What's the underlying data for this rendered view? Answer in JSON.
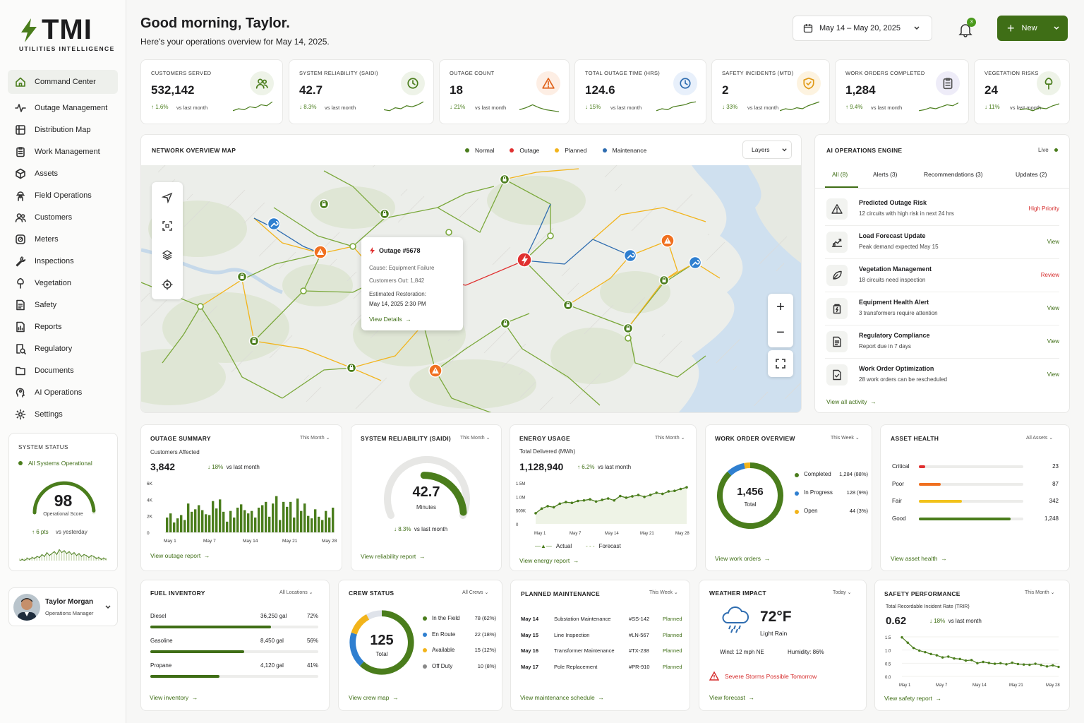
{
  "brand": {
    "name": "TMI",
    "tagline": "UTILITIES INTELLIGENCE"
  },
  "nav": [
    {
      "label": "Command Center",
      "icon": "home-icon"
    },
    {
      "label": "Outage Management",
      "icon": "pulse-icon"
    },
    {
      "label": "Distribution Map",
      "icon": "map-icon"
    },
    {
      "label": "Work Management",
      "icon": "clipboard-icon"
    },
    {
      "label": "Assets",
      "icon": "asset-icon"
    },
    {
      "label": "Field Operations",
      "icon": "worker-icon"
    },
    {
      "label": "Customers",
      "icon": "users-icon"
    },
    {
      "label": "Meters",
      "icon": "meter-icon"
    },
    {
      "label": "Inspections",
      "icon": "wrench-icon"
    },
    {
      "label": "Vegetation",
      "icon": "tree-icon"
    },
    {
      "label": "Safety",
      "icon": "document-icon"
    },
    {
      "label": "Reports",
      "icon": "report-icon"
    },
    {
      "label": "Regulatory",
      "icon": "regulatory-icon"
    },
    {
      "label": "Documents",
      "icon": "folder-icon"
    },
    {
      "label": "AI Operations",
      "icon": "ai-icon"
    },
    {
      "label": "Settings",
      "icon": "gear-icon"
    }
  ],
  "system_status": {
    "title": "SYSTEM STATUS",
    "status": "All Systems Operational",
    "score": "98",
    "score_label": "Operational Score",
    "score_fraction": 0.98,
    "delta": "↑ 6 pts",
    "vs": "vs yesterday"
  },
  "user": {
    "name": "Taylor Morgan",
    "role": "Operations Manager"
  },
  "header": {
    "greeting": "Good morning, Taylor.",
    "subtitle": "Here's your operations overview for May 14, 2025.",
    "date_range": "May 14 – May 20, 2025",
    "notifications": "3",
    "new_label": "New"
  },
  "kpis": [
    {
      "title": "CUSTOMERS SERVED",
      "value": "532,142",
      "delta": "↑ 1.6%",
      "vs": "vs last month",
      "icon": "users-icon",
      "tone": "green"
    },
    {
      "title": "SYSTEM RELIABILITY (SAIDI)",
      "value": "42.7",
      "delta": "↓ 8.3%",
      "vs": "vs last month",
      "icon": "clock-icon",
      "tone": "green"
    },
    {
      "title": "OUTAGE COUNT",
      "value": "18",
      "delta": "↓ 21%",
      "vs": "vs last month",
      "icon": "warning-icon",
      "tone": "orange"
    },
    {
      "title": "TOTAL OUTAGE TIME (HRS)",
      "value": "124.6",
      "delta": "↓ 15%",
      "vs": "vs last month",
      "icon": "clock-icon",
      "tone": "blue"
    },
    {
      "title": "SAFETY INCIDENTS (MTD)",
      "value": "2",
      "delta": "↓ 33%",
      "vs": "vs last month",
      "icon": "shield-icon",
      "tone": "amber"
    },
    {
      "title": "WORK ORDERS COMPLETED",
      "value": "1,284",
      "delta": "↑ 9.4%",
      "vs": "vs last month",
      "icon": "clipboard-icon",
      "tone": "purple"
    },
    {
      "title": "VEGETATION RISKS",
      "value": "24",
      "delta": "↓ 11%",
      "vs": "vs last month",
      "icon": "tree-icon",
      "tone": "green"
    }
  ],
  "map": {
    "title": "NETWORK OVERVIEW MAP",
    "legend": [
      "Normal",
      "Outage",
      "Planned",
      "Maintenance"
    ],
    "layers": "Layers",
    "popup": {
      "title": "Outage #5678",
      "cause": "Cause: Equipment Failure",
      "customers": "Customers Out: 1,842",
      "restoration_label": "Estimated Restoration:",
      "restoration": "May 14, 2025 2:30 PM",
      "link": "View Details"
    }
  },
  "ai": {
    "title": "AI OPERATIONS ENGINE",
    "live": "Live",
    "tabs": [
      "All (8)",
      "Alerts (3)",
      "Recommendations (3)",
      "Updates (2)"
    ],
    "items": [
      {
        "title": "Predicted Outage Risk",
        "desc": "12 circuits with high risk in next 24 hrs",
        "action": "High Priority",
        "icon": "warning-icon"
      },
      {
        "title": "Load Forecast Update",
        "desc": "Peak demand expected May 15",
        "action": "View",
        "icon": "chart-icon"
      },
      {
        "title": "Vegetation Management",
        "desc": "18 circuits need inspection",
        "action": "Review",
        "icon": "leaf-icon"
      },
      {
        "title": "Equipment Health Alert",
        "desc": "3 transformers require attention",
        "action": "View",
        "icon": "transformer-icon"
      },
      {
        "title": "Regulatory Compliance",
        "desc": "Report due in 7 days",
        "action": "View",
        "icon": "document-icon"
      },
      {
        "title": "Work Order Optimization",
        "desc": "28 work orders can be rescheduled",
        "action": "View",
        "icon": "file-check-icon"
      }
    ],
    "link": "View all activity"
  },
  "outage_summary": {
    "title": "OUTAGE SUMMARY",
    "filter": "This Month",
    "label": "Customers Affected",
    "value": "3,842",
    "delta": "↓ 18%",
    "vs": "vs last month",
    "link": "View outage report"
  },
  "saidi": {
    "title": "SYSTEM RELIABILITY (SAIDI)",
    "filter": "This Month",
    "value": "42.7",
    "unit": "Minutes",
    "delta": "↓ 8.3%",
    "vs": "vs last month",
    "link": "View reliability report"
  },
  "energy": {
    "title": "ENERGY USAGE",
    "filter": "This Month",
    "label": "Total Delivered (MWh)",
    "value": "1,128,940",
    "delta": "↑ 6.2%",
    "vs": "vs last month",
    "legend_actual": "Actual",
    "legend_forecast": "Forecast",
    "link": "View energy report"
  },
  "work_orders": {
    "title": "WORK ORDER OVERVIEW",
    "filter": "This Week",
    "value": "1,456",
    "total": "Total",
    "rows": [
      {
        "label": "Completed",
        "val": "1,284 (88%)",
        "color": "#4a7d1c"
      },
      {
        "label": "In Progress",
        "val": "128  (9%)",
        "color": "#2f7fd0"
      },
      {
        "label": "Open",
        "val": "44  (3%)",
        "color": "#f2b41b"
      }
    ],
    "link": "View work orders"
  },
  "asset_health": {
    "title": "ASSET HEALTH",
    "filter": "All Assets",
    "rows": [
      {
        "label": "Critical",
        "value": "23",
        "frac": 0.06,
        "color": "#e03030"
      },
      {
        "label": "Poor",
        "value": "87",
        "frac": 0.21,
        "color": "#f07020"
      },
      {
        "label": "Fair",
        "value": "342",
        "frac": 0.41,
        "color": "#f2c21b"
      },
      {
        "label": "Good",
        "value": "1,248",
        "frac": 0.88,
        "color": "#4a7d1c"
      }
    ],
    "link": "View asset health"
  },
  "fuel": {
    "title": "FUEL INVENTORY",
    "filter": "All Locations",
    "rows": [
      {
        "label": "Diesel",
        "amount": "36,250 gal",
        "pct": "72%",
        "frac": 0.72
      },
      {
        "label": "Gasoline",
        "amount": "8,450 gal",
        "pct": "56%",
        "frac": 0.56
      },
      {
        "label": "Propane",
        "amount": "4,120 gal",
        "pct": "41%",
        "frac": 0.41
      }
    ],
    "link": "View inventory"
  },
  "crew": {
    "title": "CREW STATUS",
    "filter": "All Crews",
    "value": "125",
    "total": "Total",
    "rows": [
      {
        "label": "In the Field",
        "val": "78 (62%)",
        "color": "#4a7d1c"
      },
      {
        "label": "En Route",
        "val": "22 (18%)",
        "color": "#2f7fd0"
      },
      {
        "label": "Available",
        "val": "15 (12%)",
        "color": "#f2b41b"
      },
      {
        "label": "Off Duty",
        "val": "10  (8%)",
        "color": "#888"
      }
    ],
    "link": "View crew map"
  },
  "maintenance": {
    "title": "PLANNED MAINTENANCE",
    "filter": "This Week",
    "rows": [
      {
        "date": "May 14",
        "task": "Substation Maintenance",
        "id": "#SS-142",
        "status": "Planned"
      },
      {
        "date": "May 15",
        "task": "Line Inspection",
        "id": "#LN-567",
        "status": "Planned"
      },
      {
        "date": "May 16",
        "task": "Transformer Maintenance",
        "id": "#TX-238",
        "status": "Planned"
      },
      {
        "date": "May 17",
        "task": "Pole Replacement",
        "id": "#PR-910",
        "status": "Planned"
      }
    ],
    "link": "View maintenance schedule"
  },
  "weather": {
    "title": "WEATHER IMPACT",
    "filter": "Today",
    "temp": "72°F",
    "cond": "Light Rain",
    "wind": "Wind:  12 mph NE",
    "humidity": "Humidity:  86%",
    "alert": "Severe Storms Possible Tomorrow",
    "link": "View forecast"
  },
  "safety": {
    "title": "SAFETY PERFORMANCE",
    "filter": "This Month",
    "label": "Total Recordable Incident Rate (TRIR)",
    "value": "0.62",
    "delta": "↓ 18%",
    "vs": "vs last month",
    "link": "View safety report"
  },
  "chart_data": [
    {
      "type": "bar",
      "title": "OUTAGE SUMMARY",
      "ylabel": "Customers Affected",
      "ylim": [
        0,
        6000
      ],
      "yticks": [
        "6K",
        "4K",
        "2K",
        "0"
      ],
      "xticks": [
        "May 1",
        "May 7",
        "May 14",
        "May 21",
        "May 28"
      ],
      "values": [
        1800,
        2300,
        1200,
        1700,
        2100,
        1500,
        3500,
        2500,
        2800,
        3300,
        2700,
        2200,
        2100,
        3800,
        2900,
        4000,
        2500,
        1300,
        2600,
        1800,
        3000,
        3400,
        2700,
        2300,
        2600,
        1800,
        3000,
        3300,
        3700,
        1900,
        3500,
        4400,
        1500,
        3700,
        3100,
        3700,
        1800,
        4100,
        2600,
        3500,
        2000,
        1700,
        2800,
        1900,
        1500,
        2600,
        1800,
        3000
      ]
    },
    {
      "type": "line",
      "title": "ENERGY USAGE",
      "ylabel": "Total Delivered (MWh)",
      "ylim": [
        0,
        1500000
      ],
      "yticks": [
        "1.5M",
        "1.0M",
        "500K",
        "0"
      ],
      "xticks": [
        "May 1",
        "May 7",
        "May 14",
        "May 21",
        "May 28"
      ],
      "series": [
        {
          "name": "Actual",
          "values": [
            390000,
            560000,
            650000,
            610000,
            740000,
            800000,
            770000,
            840000,
            860000,
            900000,
            820000,
            880000,
            930000,
            860000,
            1020000,
            960000,
            1010000,
            1060000,
            990000,
            1060000,
            1140000,
            1100000,
            1190000,
            1210000,
            1280000,
            1340000
          ]
        },
        {
          "name": "Forecast",
          "values": []
        }
      ]
    },
    {
      "type": "line",
      "title": "SAFETY PERFORMANCE",
      "ylabel": "TRIR",
      "ylim": [
        0,
        1.5
      ],
      "yticks": [
        "1.5",
        "1.0",
        "0.5",
        "0.0"
      ],
      "xticks": [
        "May 1",
        "May 7",
        "May 14",
        "May 21",
        "May 28"
      ],
      "series": [
        {
          "name": "TRIR",
          "values": [
            1.48,
            1.28,
            1.08,
            0.98,
            0.92,
            0.85,
            0.8,
            0.72,
            0.75,
            0.68,
            0.66,
            0.6,
            0.62,
            0.5,
            0.55,
            0.51,
            0.48,
            0.5,
            0.46,
            0.52,
            0.47,
            0.45,
            0.44,
            0.48,
            0.43,
            0.38,
            0.42,
            0.36
          ]
        }
      ]
    }
  ]
}
